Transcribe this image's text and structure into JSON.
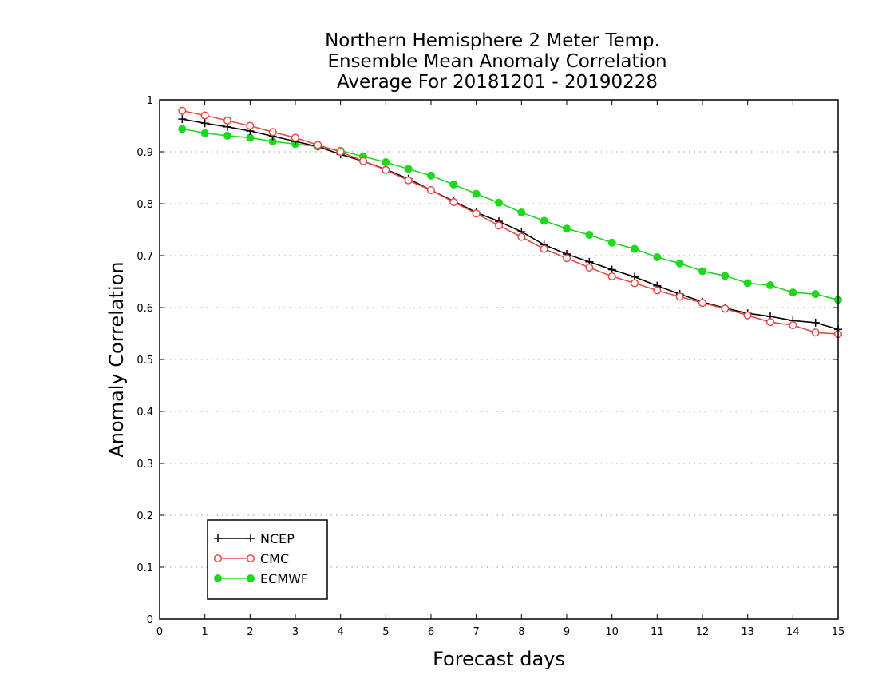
{
  "chart_data": {
    "type": "line",
    "title": [
      "Northern Hemisphere 2 Meter Temp.",
      "Ensemble Mean Anomaly Correlation",
      "Average For 20181201 - 20190228"
    ],
    "xlabel": "Forecast days",
    "ylabel": "Anomaly Correlation",
    "xlim": [
      0,
      15
    ],
    "ylim": [
      0,
      1
    ],
    "xticks": [
      "0",
      "1",
      "2",
      "3",
      "4",
      "5",
      "6",
      "7",
      "8",
      "9",
      "10",
      "11",
      "12",
      "13",
      "14",
      "15"
    ],
    "yticks": [
      "0",
      "0.1",
      "0.2",
      "0.3",
      "0.4",
      "0.5",
      "0.6",
      "0.7",
      "0.8",
      "0.9",
      "1"
    ],
    "grid": "dotted horizontal",
    "legend_position": "bottom-left",
    "x": [
      0.5,
      1,
      1.5,
      2,
      2.5,
      3,
      3.5,
      4,
      4.5,
      5,
      5.5,
      6,
      6.5,
      7,
      7.5,
      8,
      8.5,
      9,
      9.5,
      10,
      10.5,
      11,
      11.5,
      12,
      12.5,
      13,
      13.5,
      14,
      14.5,
      15
    ],
    "series": [
      {
        "name": "NCEP",
        "color": "#000000",
        "marker": "plus",
        "values": [
          0.963,
          0.955,
          0.948,
          0.94,
          0.93,
          0.92,
          0.91,
          0.895,
          0.882,
          0.866,
          0.848,
          0.826,
          0.805,
          0.783,
          0.766,
          0.746,
          0.721,
          0.703,
          0.688,
          0.673,
          0.659,
          0.642,
          0.626,
          0.611,
          0.599,
          0.589,
          0.583,
          0.575,
          0.571,
          0.558
        ]
      },
      {
        "name": "CMC",
        "color": "#e84a4a",
        "marker": "open-circle",
        "values": [
          0.979,
          0.97,
          0.96,
          0.95,
          0.938,
          0.927,
          0.913,
          0.9,
          0.882,
          0.865,
          0.845,
          0.826,
          0.803,
          0.781,
          0.758,
          0.736,
          0.713,
          0.695,
          0.677,
          0.66,
          0.647,
          0.633,
          0.621,
          0.609,
          0.598,
          0.585,
          0.572,
          0.566,
          0.552,
          0.549
        ]
      },
      {
        "name": "ECMWF",
        "color": "#1ed81e",
        "marker": "filled-circle",
        "values": [
          0.944,
          0.936,
          0.931,
          0.927,
          0.92,
          0.915,
          0.91,
          0.902,
          0.891,
          0.88,
          0.867,
          0.854,
          0.837,
          0.819,
          0.802,
          0.783,
          0.767,
          0.752,
          0.74,
          0.725,
          0.713,
          0.697,
          0.685,
          0.67,
          0.661,
          0.647,
          0.643,
          0.629,
          0.626,
          0.615
        ]
      }
    ]
  }
}
